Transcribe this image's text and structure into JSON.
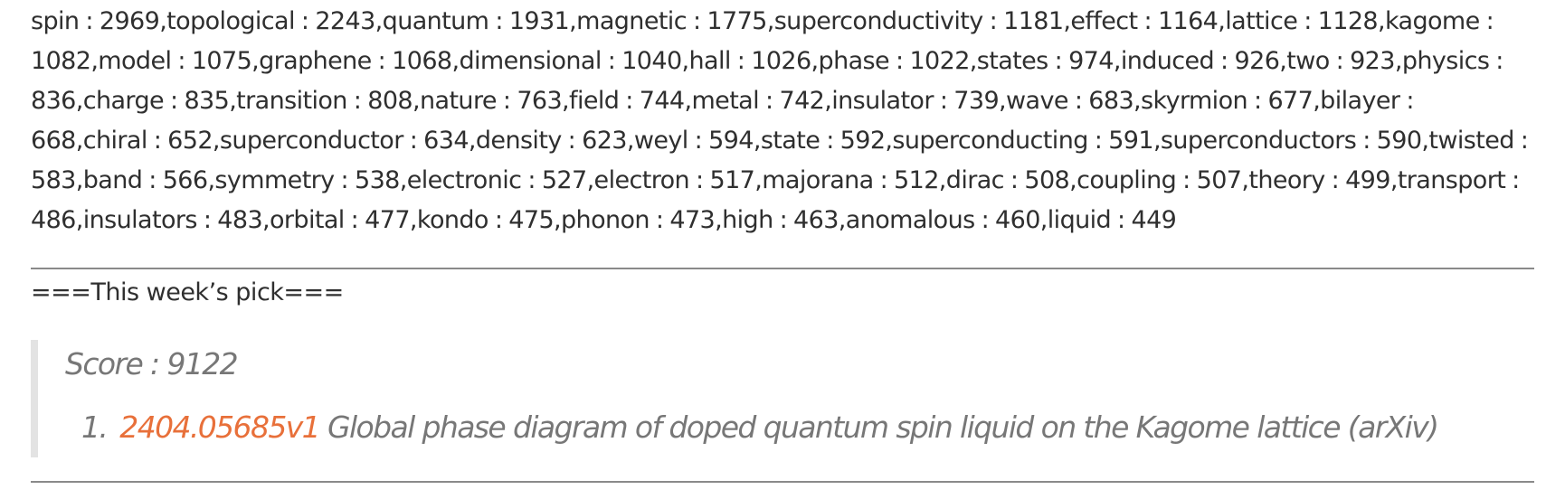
{
  "word_frequency_text": "spin : 2969,topological : 2243,quantum : 1931,magnetic : 1775,superconductivity : 1181,effect : 1164,lattice : 1128,kagome : 1082,model : 1075,graphene : 1068,dimensional : 1040,hall : 1026,phase : 1022,states : 974,induced : 926,two : 923,physics : 836,charge : 835,transition : 808,nature : 763,field : 744,metal : 742,insulator : 739,wave : 683,skyrmion : 677,bilayer : 668,chiral : 652,superconductor : 634,density : 623,weyl : 594,state : 592,superconducting : 591,superconductors : 590,twisted : 583,band : 566,symmetry : 538,electronic : 527,electron : 517,majorana : 512,dirac : 508,coupling : 507,theory : 499,transport : 486,insulators : 483,orbital : 477,kondo : 475,phonon : 473,high : 463,anomalous : 460,liquid : 449",
  "pick": {
    "heading": "===This week’s pick===",
    "score": "Score : 9122",
    "items": [
      {
        "number": "1.",
        "id": "2404.05685v1",
        "title": "Global phase diagram of doped quantum spin liquid on the Kagome lattice (arXiv)"
      }
    ]
  },
  "colors": {
    "link": "#e8703a",
    "quote_text": "#777777",
    "quote_border": "#e3e3e3",
    "rule": "#8a8a8a"
  }
}
